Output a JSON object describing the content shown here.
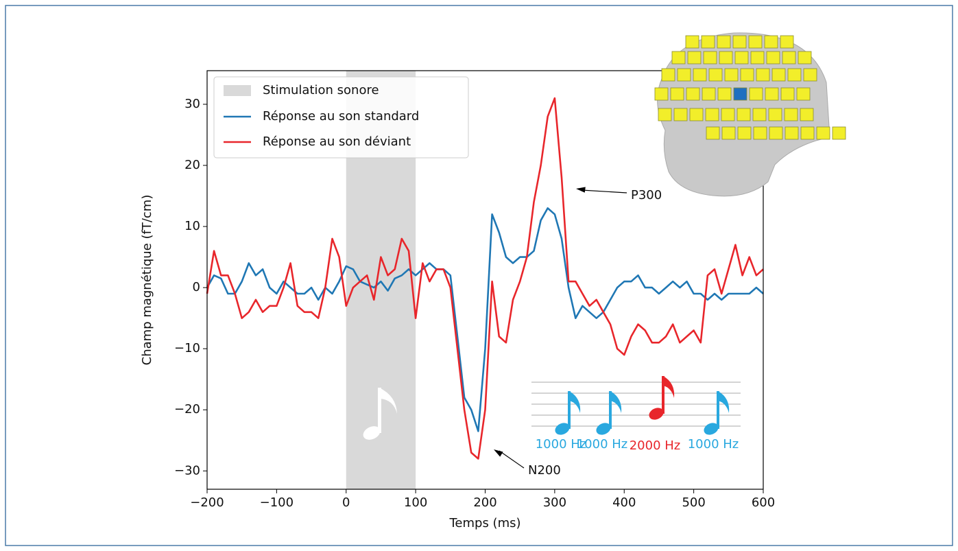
{
  "chart_data": {
    "type": "line",
    "xlabel": "Temps (ms)",
    "ylabel": "Champ magnétique (fT/cm)",
    "xlim": [
      -200,
      600
    ],
    "ylim": [
      -33,
      35.5
    ],
    "xticks": [
      {
        "value": -200,
        "label": "−200"
      },
      {
        "value": -100,
        "label": "−100"
      },
      0,
      100,
      200,
      300,
      400,
      500,
      600
    ],
    "yticks": [
      {
        "value": -30,
        "label": "−30"
      },
      {
        "value": -20,
        "label": "−20"
      },
      {
        "value": -10,
        "label": "−10"
      },
      0,
      10,
      20,
      30
    ],
    "span": {
      "name": "Stimulation sonore",
      "start": 0,
      "end": 100,
      "color": "#d9d9d9"
    },
    "x": [
      -200,
      -190,
      -180,
      -170,
      -160,
      -150,
      -140,
      -130,
      -120,
      -110,
      -100,
      -90,
      -80,
      -70,
      -60,
      -50,
      -40,
      -30,
      -20,
      -10,
      0,
      10,
      20,
      30,
      40,
      50,
      60,
      70,
      80,
      90,
      100,
      110,
      120,
      130,
      140,
      150,
      160,
      170,
      180,
      190,
      200,
      210,
      220,
      230,
      240,
      250,
      260,
      270,
      280,
      290,
      300,
      310,
      320,
      330,
      340,
      350,
      360,
      370,
      380,
      390,
      400,
      410,
      420,
      430,
      440,
      450,
      460,
      470,
      480,
      490,
      500,
      510,
      520,
      530,
      540,
      550,
      560,
      570,
      580,
      590,
      600
    ],
    "series": [
      {
        "name": "Réponse au son standard",
        "color": "#1f77b4",
        "values": [
          0,
          2,
          1.5,
          -1,
          -1,
          1,
          4,
          2,
          3,
          0,
          -1,
          1,
          0,
          -1,
          -1,
          0,
          -2,
          0,
          -1,
          1,
          3.5,
          3,
          1,
          0.5,
          0,
          1,
          -0.5,
          1.5,
          2,
          3,
          2,
          3,
          4,
          3,
          3,
          2,
          -8,
          -18,
          -20,
          -23.5,
          -10,
          12,
          9,
          5,
          4,
          5,
          5,
          6,
          11,
          13,
          12,
          8,
          0,
          -5,
          -3,
          -4,
          -5,
          -4,
          -2,
          0,
          1,
          1,
          2,
          0,
          0,
          -1,
          0,
          1,
          0,
          1,
          -1,
          -1,
          -2,
          -1,
          -2,
          -1,
          -1,
          -1,
          -1,
          0,
          -1
        ]
      },
      {
        "name": "Réponse au son déviant",
        "color": "#e8262b",
        "values": [
          -1,
          6,
          2,
          2,
          -1,
          -5,
          -4,
          -2,
          -4,
          -3,
          -3,
          0,
          4,
          -3,
          -4,
          -4,
          -5,
          0,
          8,
          5,
          -3,
          0,
          1,
          2,
          -2,
          5,
          2,
          3,
          8,
          6,
          -5,
          4,
          1,
          3,
          3,
          0,
          -10,
          -20,
          -27,
          -28,
          -20,
          1,
          -8,
          -9,
          -2,
          1,
          5,
          14,
          20,
          28,
          31,
          18,
          1,
          1,
          -1,
          -3,
          -2,
          -4,
          -6,
          -10,
          -11,
          -8,
          -6,
          -7,
          -9,
          -9,
          -8,
          -6,
          -9,
          -8,
          -7,
          -9,
          2,
          3,
          -1,
          3,
          7,
          2,
          5,
          2,
          3
        ]
      }
    ],
    "legend": "upper left",
    "annotations": [
      "P300",
      "N200"
    ],
    "note_labels": [
      "1000 Hz",
      "1000 Hz",
      "2000 Hz",
      "1000 Hz"
    ]
  }
}
